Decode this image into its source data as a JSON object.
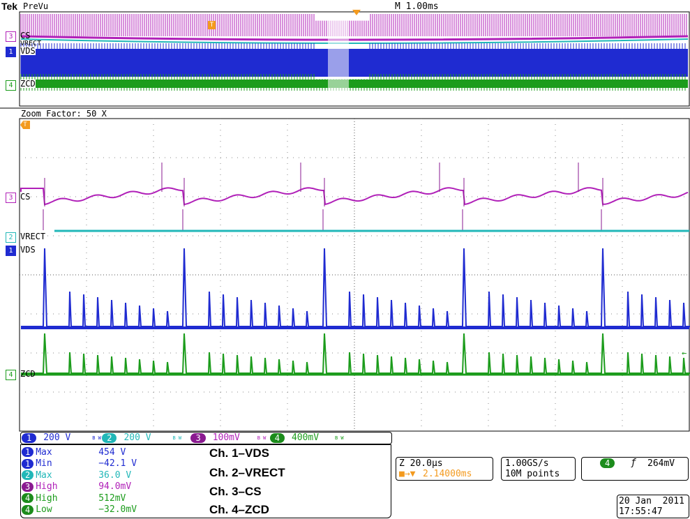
{
  "header": {
    "brand": "Tek",
    "mode": "PreVu",
    "timebase": "M 1.00ms",
    "zoom_factor": "Zoom Factor: 50 X"
  },
  "channels": [
    {
      "num": "1",
      "name": "VDS",
      "color": "#1f2bd1",
      "scale": "200 V"
    },
    {
      "num": "2",
      "name": "VRECT",
      "color": "#21b7b8",
      "scale": "200 V"
    },
    {
      "num": "3",
      "name": "CS",
      "color": "#b020b8",
      "scale": "100mV"
    },
    {
      "num": "4",
      "name": "ZCD",
      "color": "#1c9c1c",
      "scale": "400mV"
    }
  ],
  "bw_label": "B W",
  "measurements": [
    {
      "ch": "1",
      "label": "Max",
      "value": "454 V",
      "color": "#1f2bd1",
      "badge_color": "#1f2bd1"
    },
    {
      "ch": "1",
      "label": "Min",
      "value": "−42.1 V",
      "color": "#1f2bd1",
      "badge_color": "#1f2bd1"
    },
    {
      "ch": "2",
      "label": "Max",
      "value": "36.0 V",
      "color": "#21b7b8",
      "badge_color": "#21b7b8"
    },
    {
      "ch": "3",
      "label": "High",
      "value": "94.0mV",
      "color": "#b020b8",
      "badge_color": "#8a1a90"
    },
    {
      "ch": "4",
      "label": "High",
      "value": "512mV",
      "color": "#1c9c1c",
      "badge_color": "#1c8c1c"
    },
    {
      "ch": "4",
      "label": "Low",
      "value": "−32.0mV",
      "color": "#1c9c1c",
      "badge_color": "#1c8c1c"
    }
  ],
  "legend": [
    "Ch. 1–VDS",
    "Ch. 2–VRECT",
    "Ch. 3–CS",
    "Ch. 4–ZCD"
  ],
  "zoom": {
    "scale": "Z 20.0µs",
    "position": "2.14000ms"
  },
  "acquisition": {
    "rate": "1.00GS/s",
    "points": "10M points"
  },
  "trigger": {
    "channel": "4",
    "slope": "ƒ",
    "level": "264mV"
  },
  "datetime": {
    "date": "20 Jan  2011",
    "time": "17:55:47"
  },
  "colors": {
    "orange": "#f39a1e"
  }
}
